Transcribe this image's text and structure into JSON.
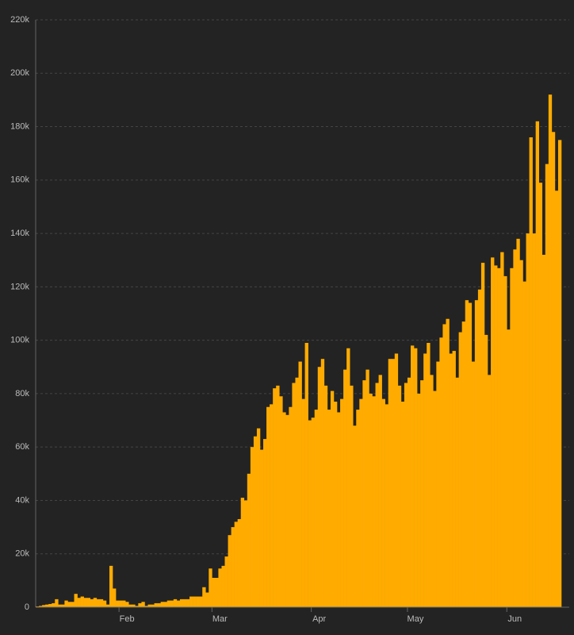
{
  "chart_data": {
    "type": "bar",
    "color": "#ffab00",
    "grid": true,
    "categories": [
      null,
      null,
      null,
      null,
      null,
      null,
      null,
      null,
      null,
      null,
      null,
      null,
      null,
      null,
      null,
      null,
      null,
      null,
      null,
      null,
      null,
      null,
      null,
      null,
      null,
      null,
      "Feb",
      null,
      null,
      null,
      null,
      null,
      null,
      null,
      null,
      null,
      null,
      null,
      null,
      null,
      null,
      null,
      null,
      null,
      null,
      null,
      null,
      null,
      null,
      null,
      null,
      null,
      null,
      null,
      null,
      "Mar",
      null,
      null,
      null,
      null,
      null,
      null,
      null,
      null,
      null,
      null,
      null,
      null,
      null,
      null,
      null,
      null,
      null,
      null,
      null,
      null,
      null,
      null,
      null,
      null,
      null,
      null,
      null,
      null,
      null,
      null,
      "Apr",
      null,
      null,
      null,
      null,
      null,
      null,
      null,
      null,
      null,
      null,
      null,
      null,
      null,
      null,
      null,
      null,
      null,
      null,
      null,
      null,
      null,
      null,
      null,
      null,
      null,
      null,
      null,
      null,
      null,
      "May",
      null,
      null,
      null,
      null,
      null,
      null,
      null,
      null,
      null,
      null,
      null,
      null,
      null,
      null,
      null,
      null,
      null,
      null,
      null,
      null,
      null,
      null,
      null,
      null,
      null,
      null,
      null,
      null,
      null,
      null,
      "Jun",
      null,
      null,
      null,
      null,
      null,
      null,
      null,
      null,
      null,
      null,
      null,
      null,
      null,
      null,
      null,
      null
    ],
    "values": [
      300,
      500,
      800,
      1000,
      1200,
      1500,
      3000,
      1000,
      1000,
      2500,
      2000,
      2000,
      5000,
      3500,
      4000,
      3500,
      3500,
      3000,
      3500,
      3000,
      3000,
      2500,
      1000,
      15500,
      7000,
      2500,
      2500,
      2500,
      2000,
      1000,
      1000,
      500,
      1500,
      2000,
      500,
      1000,
      1000,
      1500,
      1500,
      2000,
      2000,
      2500,
      2500,
      3000,
      2500,
      3000,
      3000,
      3000,
      4000,
      4000,
      4000,
      4000,
      7500,
      5500,
      14500,
      11000,
      11000,
      14500,
      15500,
      19000,
      27000,
      30000,
      32000,
      33000,
      41000,
      40000,
      50000,
      60000,
      64000,
      67000,
      59000,
      63000,
      75000,
      76000,
      82000,
      83000,
      79000,
      73000,
      72000,
      75000,
      84000,
      86000,
      92000,
      78000,
      99000,
      70000,
      71000,
      74000,
      90000,
      93000,
      83000,
      74000,
      81000,
      77000,
      73000,
      78000,
      89000,
      97000,
      83000,
      68000,
      74000,
      78000,
      85000,
      89000,
      80000,
      79000,
      84000,
      87000,
      78000,
      76000,
      93000,
      93000,
      95000,
      83000,
      77000,
      84000,
      86000,
      98000,
      97000,
      80000,
      85000,
      95000,
      99000,
      87000,
      81000,
      92000,
      101000,
      106000,
      108000,
      95000,
      96000,
      86000,
      103000,
      107000,
      115000,
      114000,
      92000,
      115000,
      119000,
      129000,
      102000,
      87000,
      131000,
      128000,
      127000,
      133000,
      124000,
      104000,
      127000,
      134000,
      138000,
      130000,
      122000,
      140000,
      176000,
      140000,
      182000,
      159000,
      132000,
      166000,
      192000,
      178000,
      156000,
      175000
    ],
    "ylim": [
      0,
      220000
    ],
    "yticks": [
      0,
      {
        "value": 20000,
        "label": "20k"
      },
      {
        "value": 40000,
        "label": "40k"
      },
      {
        "value": 60000,
        "label": "60k"
      },
      {
        "value": 80000,
        "label": "80k"
      },
      {
        "value": 100000,
        "label": "100k"
      },
      {
        "value": 120000,
        "label": "120k"
      },
      {
        "value": 140000,
        "label": "140k"
      },
      {
        "value": 160000,
        "label": "160k"
      },
      {
        "value": 180000,
        "label": "180k"
      },
      {
        "value": 200000,
        "label": "200k"
      },
      {
        "value": 220000,
        "label": "220k"
      }
    ]
  }
}
